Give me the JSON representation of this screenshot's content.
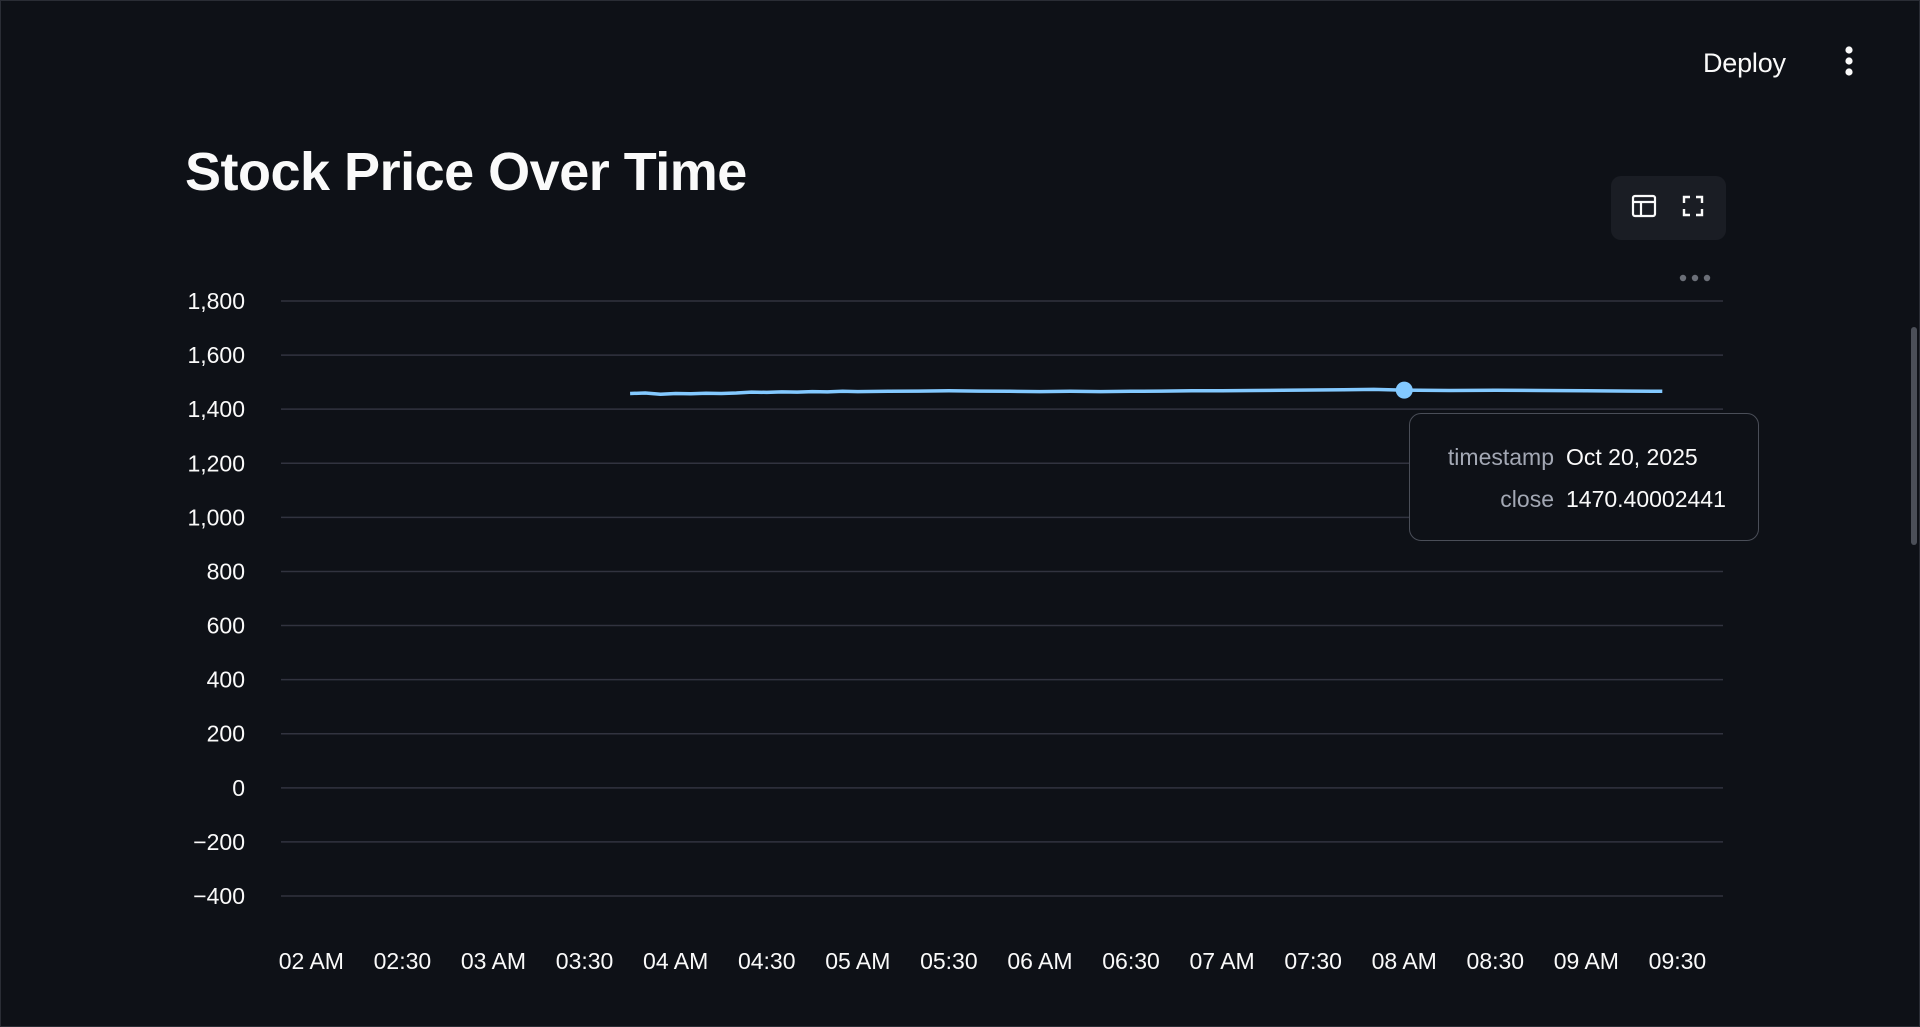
{
  "header": {
    "deploy_label": "Deploy",
    "menu_icon": "vertical-ellipsis-icon"
  },
  "main": {
    "title": "Stock Price Over Time"
  },
  "toolbar": {
    "icons": [
      "table-icon",
      "fullscreen-icon"
    ],
    "more_icon": "horizontal-ellipsis-icon"
  },
  "colors": {
    "background": "#0e1117",
    "line": "#83c9ff",
    "grid": "#31333f",
    "text": "#fafafa"
  },
  "tooltip": {
    "timestamp_key": "timestamp",
    "timestamp_value": "Oct 20, 2025",
    "close_key": "close",
    "close_value": "1470.40002441"
  },
  "chart_data": {
    "type": "line",
    "title": "",
    "xlabel": "",
    "ylabel": "",
    "grid": true,
    "x_ticks": [
      "02 AM",
      "02:30",
      "03 AM",
      "03:30",
      "04 AM",
      "04:30",
      "05 AM",
      "05:30",
      "06 AM",
      "06:30",
      "07 AM",
      "07:30",
      "08 AM",
      "08:30",
      "09 AM",
      "09:30"
    ],
    "y_ticks": [
      "1,800",
      "1,600",
      "1,400",
      "1,200",
      "1,000",
      "800",
      "600",
      "400",
      "200",
      "0",
      "−200",
      "−400"
    ],
    "ylim": [
      -400,
      1800
    ],
    "series": [
      {
        "x": [
          "03:45",
          "03:50",
          "03:55",
          "04:00",
          "04:05",
          "04:10",
          "04:15",
          "04:20",
          "04:25",
          "04:30",
          "04:35",
          "04:40",
          "04:45",
          "04:50",
          "04:55",
          "05:00",
          "05:10",
          "05:20",
          "05:30",
          "05:40",
          "05:50",
          "06:00",
          "06:10",
          "06:20",
          "06:30",
          "06:40",
          "06:50",
          "07:00",
          "07:10",
          "07:20",
          "07:30",
          "07:40",
          "07:50",
          "08:00",
          "08:05",
          "08:15",
          "08:30",
          "08:45",
          "09:00",
          "09:15",
          "09:25"
        ],
        "y": [
          1458,
          1460,
          1455,
          1458,
          1457,
          1459,
          1458,
          1460,
          1463,
          1462,
          1464,
          1463,
          1465,
          1464,
          1466,
          1465,
          1466,
          1467,
          1468,
          1467,
          1466,
          1465,
          1466,
          1465,
          1466,
          1467,
          1468,
          1468,
          1469,
          1470,
          1471,
          1472,
          1473,
          1470.4,
          1470,
          1469,
          1470,
          1469,
          1468,
          1467,
          1466
        ]
      }
    ],
    "highlight": {
      "x": "08:00",
      "y": 1470.4
    }
  }
}
